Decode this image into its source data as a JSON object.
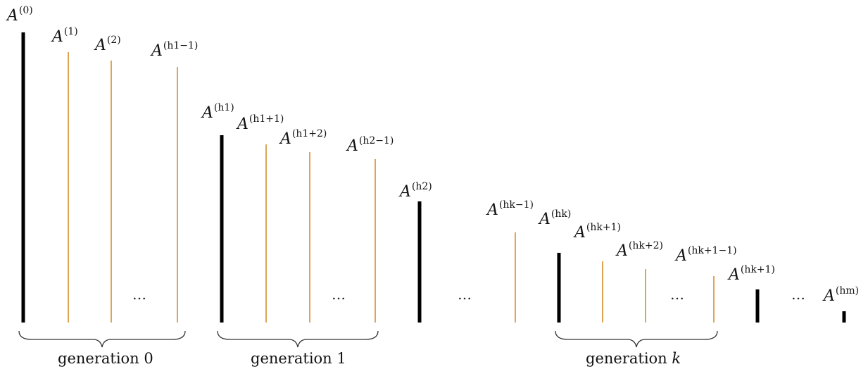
{
  "colors": {
    "heavy_bar": "#000000",
    "light_bar": "#d4861f",
    "brace": "#333333"
  },
  "labels": {
    "a0": {
      "base": "A",
      "sup": "(0)"
    },
    "a1": {
      "base": "A",
      "sup": "(1)"
    },
    "a2": {
      "base": "A",
      "sup": "(2)"
    },
    "ah1m": {
      "base": "A",
      "sup": "(h1−1)"
    },
    "ah1": {
      "base": "A",
      "sup": "(h1)"
    },
    "ah1p1": {
      "base": "A",
      "sup": "(h1+1)"
    },
    "ah1p2": {
      "base": "A",
      "sup": "(h1+2)"
    },
    "ah2m": {
      "base": "A",
      "sup": "(h2−1)"
    },
    "ah2": {
      "base": "A",
      "sup": "(h2)"
    },
    "ahkm": {
      "base": "A",
      "sup": "(hk−1)"
    },
    "ahk": {
      "base": "A",
      "sup": "(hk)"
    },
    "ahkp1": {
      "base": "A",
      "sup": "(hk+1)"
    },
    "ahkp2": {
      "base": "A",
      "sup": "(hk+2)"
    },
    "ahk1m": {
      "base": "A",
      "sup": "(hk+1−1)"
    },
    "ahk1": {
      "base": "A",
      "sup": "(hk+1)"
    },
    "ahm": {
      "base": "A",
      "sup": "(hm)"
    }
  },
  "ellipsis": "…",
  "generations": {
    "g0": {
      "text": "generation 0"
    },
    "g1": {
      "text": "generation 1"
    },
    "gk": {
      "text": "generation",
      "var": "k"
    }
  }
}
